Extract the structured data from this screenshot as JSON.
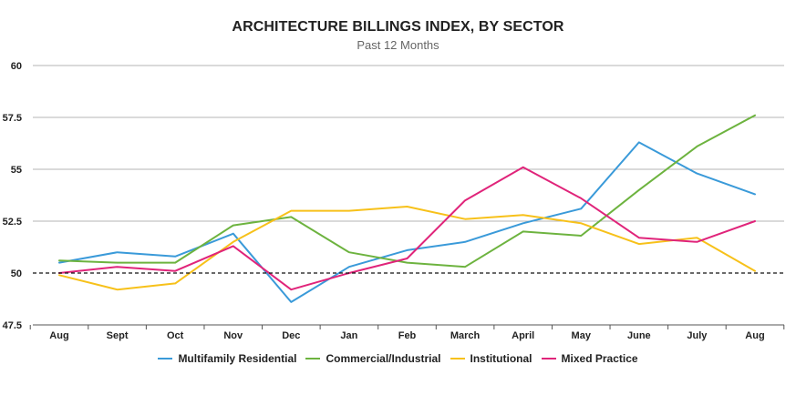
{
  "chart_data": {
    "type": "line",
    "title": "ARCHITECTURE BILLINGS INDEX, BY SECTOR",
    "subtitle": "Past 12 Months",
    "categories": [
      "Aug",
      "Sept",
      "Oct",
      "Nov",
      "Dec",
      "Jan",
      "Feb",
      "March",
      "April",
      "May",
      "June",
      "July",
      "Aug"
    ],
    "yticks": [
      "60",
      "57.5",
      "55",
      "52.5",
      "50",
      "47.5"
    ],
    "ylim": [
      47.5,
      60
    ],
    "reference_line": 50,
    "grid": "horizontal",
    "legend_position": "bottom",
    "series": [
      {
        "name": "Multifamily Residential",
        "color": "#3a9ad9",
        "values": [
          50.5,
          51.0,
          50.8,
          51.9,
          48.6,
          50.3,
          51.1,
          51.5,
          52.4,
          53.1,
          56.3,
          54.8,
          53.8
        ]
      },
      {
        "name": "Commercial/Industrial",
        "color": "#6db33f",
        "values": [
          50.6,
          50.5,
          50.5,
          52.3,
          52.7,
          51.0,
          50.5,
          50.3,
          52.0,
          51.8,
          54.0,
          56.1,
          57.6
        ]
      },
      {
        "name": "Institutional",
        "color": "#f7c11a",
        "values": [
          49.9,
          49.2,
          49.5,
          51.5,
          53.0,
          53.0,
          53.2,
          52.6,
          52.8,
          52.4,
          51.4,
          51.7,
          50.1
        ]
      },
      {
        "name": "Mixed Practice",
        "color": "#e0247a",
        "values": [
          50.0,
          50.3,
          50.1,
          51.3,
          49.2,
          50.0,
          50.7,
          53.5,
          55.1,
          53.6,
          51.7,
          51.5,
          52.5
        ]
      }
    ]
  }
}
